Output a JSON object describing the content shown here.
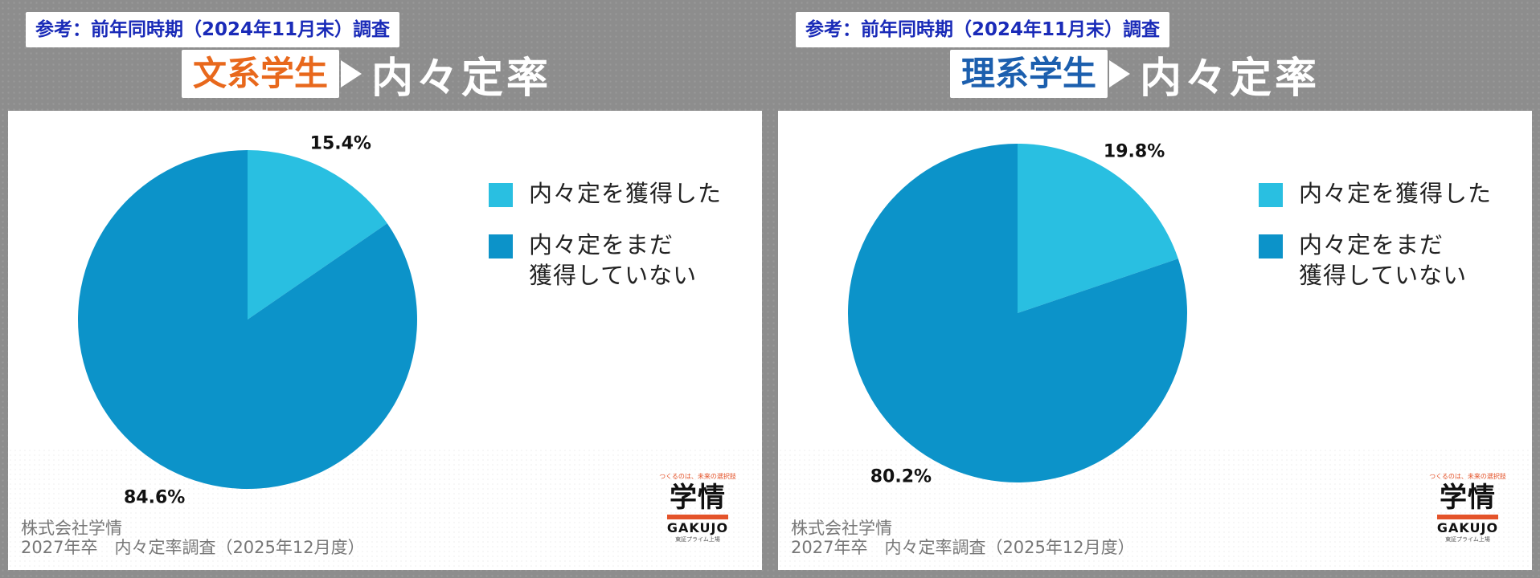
{
  "colors": {
    "acquired": "#29bfe1",
    "not_acquired": "#0c93c9",
    "ref_text": "#1a2bb8"
  },
  "panels": [
    {
      "ref_label": "参考：前年同時期（2024年11月末）調査",
      "category_label": "文系学生",
      "category_color": "#e8681c",
      "title": "内々定率",
      "legend": [
        "内々定を獲得した",
        "内々定をまだ\n獲得していない"
      ],
      "footer_line1": "株式会社学情",
      "footer_line2": "2027年卒　内々定率調査（2025年12月度）",
      "logo": {
        "tagline": "つくるのは、未来の選択肢",
        "mark": "学情",
        "name": "GAKUJO",
        "sub": "東証プライム上場"
      },
      "chart_data": {
        "type": "pie",
        "labels": [
          "内々定を獲得した",
          "内々定をまだ獲得していない"
        ],
        "values": [
          15.4,
          84.6
        ],
        "value_labels": [
          "15.4%",
          "84.6%"
        ]
      }
    },
    {
      "ref_label": "参考：前年同時期（2024年11月末）調査",
      "category_label": "理系学生",
      "category_color": "#1c5fae",
      "title": "内々定率",
      "legend": [
        "内々定を獲得した",
        "内々定をまだ\n獲得していない"
      ],
      "footer_line1": "株式会社学情",
      "footer_line2": "2027年卒　内々定率調査（2025年12月度）",
      "logo": {
        "tagline": "つくるのは、未来の選択肢",
        "mark": "学情",
        "name": "GAKUJO",
        "sub": "東証プライム上場"
      },
      "chart_data": {
        "type": "pie",
        "labels": [
          "内々定を獲得した",
          "内々定をまだ獲得していない"
        ],
        "values": [
          19.8,
          80.2
        ],
        "value_labels": [
          "19.8%",
          "80.2%"
        ]
      }
    }
  ]
}
